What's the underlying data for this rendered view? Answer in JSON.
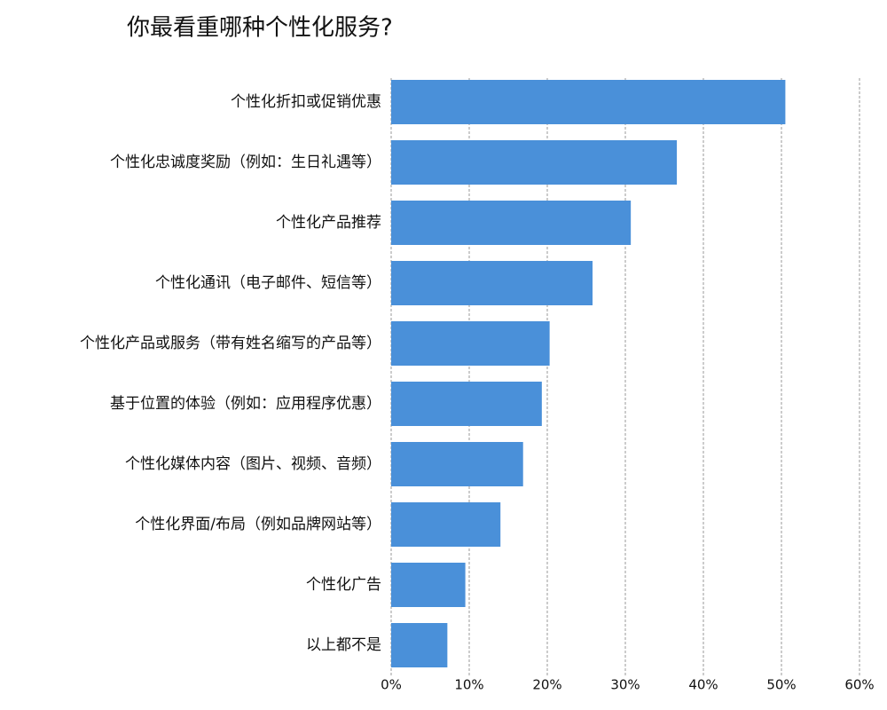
{
  "chart_data": {
    "type": "barh",
    "title": "你最看重哪种个性化服务?",
    "categories": [
      "个性化折扣或促销优惠",
      "个性化忠诚度奖励（例如：生日礼遇等）",
      "个性化产品推荐",
      "个性化通讯（电子邮件、短信等）",
      "个性化产品或服务（带有姓名缩写的产品等）",
      "基于位置的体验（例如：应用程序优惠）",
      "个性化媒体内容（图片、视频、音频）",
      "个性化界面/布局（例如品牌网站等）",
      "个性化广告",
      "以上都不是"
    ],
    "values": [
      50.5,
      36.6,
      30.7,
      25.8,
      20.3,
      19.3,
      16.9,
      14.0,
      9.5,
      7.2
    ],
    "color": "#4a90d9",
    "xlim": [
      0,
      60
    ],
    "xticks": [
      {
        "value": 0,
        "label": "0%"
      },
      {
        "value": 10,
        "label": "10%"
      },
      {
        "value": 20,
        "label": "20%"
      },
      {
        "value": 30,
        "label": "30%"
      },
      {
        "value": 40,
        "label": "40%"
      },
      {
        "value": 50,
        "label": "50%"
      },
      {
        "value": 60,
        "label": "60%"
      }
    ],
    "grid": true
  }
}
